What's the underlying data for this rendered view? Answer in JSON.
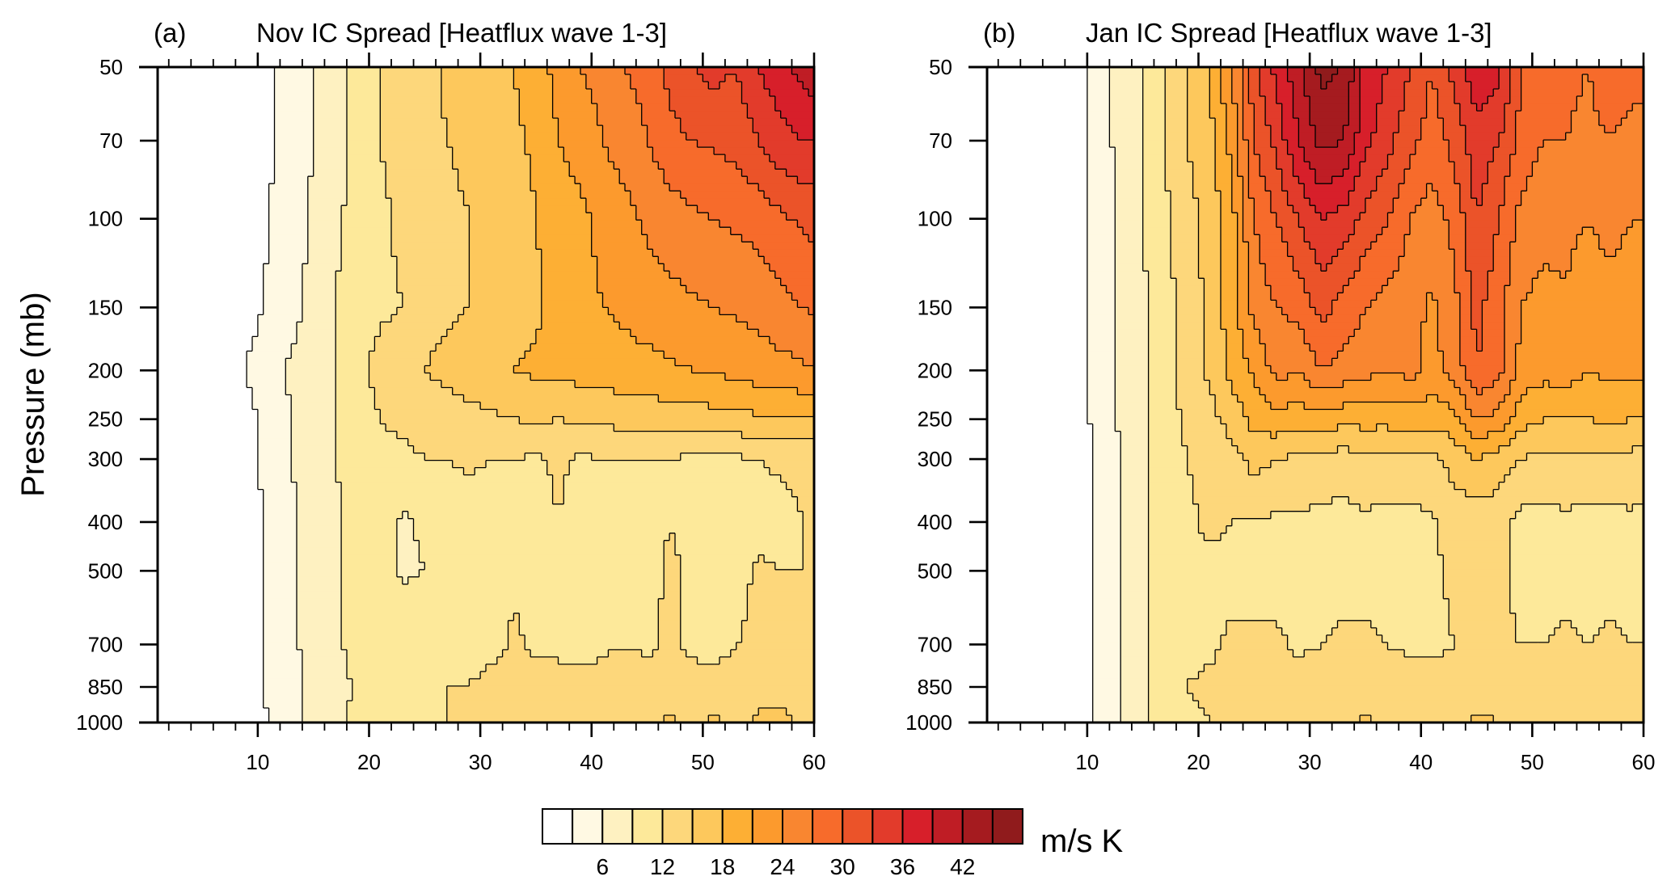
{
  "chart_data": [
    {
      "type": "heatmap",
      "subtype": "filled-contour",
      "panel_label": "(a)",
      "title": "Nov IC Spread [Heatflux wave 1-3]",
      "ylabel": "Pressure (mb)",
      "xlabel": "",
      "xlim": [
        1,
        60
      ],
      "ylim": [
        1000,
        50
      ],
      "yscale": "log",
      "x_ticks": [
        10,
        20,
        30,
        40,
        50,
        60
      ],
      "y_ticks": [
        50,
        70,
        100,
        150,
        200,
        250,
        300,
        400,
        500,
        700,
        850,
        1000
      ],
      "grid": false,
      "x": [
        1,
        3,
        5,
        7,
        9,
        11,
        13,
        15,
        17,
        19,
        21,
        23,
        25,
        27,
        29,
        31,
        33,
        35,
        37,
        39,
        41,
        43,
        45,
        47,
        49,
        51,
        53,
        55,
        57,
        59,
        60
      ],
      "y": [
        50,
        70,
        100,
        150,
        200,
        250,
        300,
        400,
        500,
        700,
        850,
        1000
      ],
      "z": [
        [
          0,
          0,
          0,
          0,
          1,
          2.5,
          4.5,
          6,
          8,
          10,
          12,
          13,
          14,
          15.5,
          16,
          17,
          18,
          19.5,
          22,
          24,
          25,
          27,
          28,
          31,
          33,
          34,
          33,
          36,
          38,
          40,
          41
        ],
        [
          0,
          0,
          0,
          0,
          1,
          2.5,
          4.5,
          6,
          8,
          10,
          12,
          13,
          14,
          15,
          15.5,
          16.5,
          17.5,
          18.5,
          21,
          22.5,
          24,
          25.5,
          27,
          29,
          30,
          30.5,
          31,
          33,
          35,
          36,
          36
        ],
        [
          0,
          0,
          0,
          0,
          1,
          3,
          4.5,
          6.5,
          8.5,
          10,
          11.5,
          12.5,
          13.5,
          14.5,
          15,
          15.5,
          16.5,
          18,
          19.5,
          20,
          22,
          23,
          24.5,
          25.5,
          26.5,
          27,
          27.5,
          28,
          29.5,
          30.5,
          31
        ],
        [
          0,
          0,
          0,
          0,
          1.5,
          3.5,
          5,
          7,
          9,
          11,
          11.5,
          12,
          13.5,
          14.5,
          15,
          15.5,
          16.5,
          17.5,
          19,
          20,
          21,
          21.5,
          22.5,
          23,
          23.5,
          24,
          24.5,
          25,
          26,
          27,
          27.5
        ],
        [
          0,
          0,
          0,
          0,
          3.2,
          5,
          6.5,
          8,
          9,
          11,
          13,
          14,
          15,
          16,
          16.5,
          17,
          18,
          18.5,
          19,
          19,
          19.5,
          20,
          20,
          20.5,
          21,
          21,
          22,
          22.5,
          23,
          23.5,
          24
        ],
        [
          0,
          0,
          0,
          0,
          2,
          4,
          6,
          7.5,
          9,
          10.5,
          12,
          12.5,
          13,
          13.5,
          14,
          14.5,
          15,
          15.5,
          15,
          15.5,
          15.5,
          16,
          16,
          16.5,
          16.5,
          17,
          17,
          17.5,
          17.5,
          18,
          18
        ],
        [
          0,
          0,
          0,
          0,
          2,
          4,
          6,
          7.5,
          9,
          10.5,
          11.5,
          11.5,
          12,
          12,
          12.5,
          12,
          12,
          11.5,
          12.5,
          11.5,
          12,
          12,
          12,
          12,
          11.5,
          11.5,
          11.5,
          12,
          12.5,
          12.5,
          12
        ],
        [
          0,
          0,
          0,
          0,
          1.5,
          3.5,
          5.5,
          7,
          8.5,
          10,
          10.5,
          8.5,
          9.5,
          10,
          10.5,
          10,
          10.5,
          11,
          12,
          11,
          10.5,
          10.5,
          10.5,
          12,
          11,
          10.5,
          10.5,
          11,
          11,
          12,
          12.5
        ],
        [
          0,
          0,
          0,
          0,
          1.5,
          3.5,
          5.5,
          7,
          8.5,
          10,
          10.5,
          8.5,
          9,
          10,
          9.5,
          10,
          11.5,
          11,
          11,
          10,
          10.5,
          11,
          11,
          12.5,
          11.5,
          10.5,
          11,
          12.5,
          12,
          12,
          12.5
        ],
        [
          0,
          0,
          0,
          0,
          1.5,
          3.5,
          5.5,
          7,
          8.5,
          10,
          11,
          11,
          11.5,
          11,
          11,
          11,
          12.5,
          11.5,
          12,
          11,
          11.5,
          12,
          11.5,
          12.5,
          11.5,
          11,
          12,
          12.5,
          12,
          12.5,
          13
        ],
        [
          0,
          0,
          0,
          0,
          2,
          3.5,
          5,
          7,
          8,
          9.5,
          11,
          11,
          11.5,
          12,
          12,
          13,
          13,
          13,
          12,
          13,
          13,
          13.5,
          13,
          13.5,
          13,
          13,
          13.5,
          14,
          14,
          13.5,
          13
        ],
        [
          0,
          0,
          0,
          0,
          1.5,
          3,
          5,
          7,
          8.5,
          9.5,
          10,
          10.5,
          11,
          12,
          12.5,
          13.5,
          13,
          13.5,
          13.5,
          14,
          14,
          13.5,
          14,
          15.5,
          14,
          15.5,
          14.5,
          15.5,
          16,
          14,
          14
        ]
      ]
    },
    {
      "type": "heatmap",
      "subtype": "filled-contour",
      "panel_label": "(b)",
      "title": "Jan IC Spread [Heatflux wave 1-3]",
      "ylabel": "",
      "xlabel": "",
      "xlim": [
        1,
        60
      ],
      "ylim": [
        1000,
        50
      ],
      "yscale": "log",
      "x_ticks": [
        10,
        20,
        30,
        40,
        50,
        60
      ],
      "y_ticks": [
        50,
        70,
        100,
        150,
        200,
        250,
        300,
        400,
        500,
        700,
        850,
        1000
      ],
      "grid": false,
      "x": [
        1,
        3,
        5,
        7,
        9,
        11,
        13,
        15,
        17,
        19,
        21,
        23,
        25,
        27,
        29,
        31,
        33,
        35,
        37,
        39,
        41,
        43,
        45,
        47,
        49,
        51,
        53,
        55,
        57,
        59,
        60
      ],
      "y": [
        50,
        70,
        100,
        150,
        200,
        250,
        300,
        400,
        500,
        700,
        850,
        1000
      ],
      "z": [
        [
          0,
          0,
          0,
          0,
          1.5,
          4.5,
          7,
          9,
          12,
          15,
          18,
          24,
          32,
          37,
          41,
          46,
          45,
          38,
          36,
          33,
          30,
          34,
          38,
          37,
          30,
          29,
          28,
          27,
          29,
          28,
          28
        ],
        [
          0,
          0,
          0,
          0,
          1.5,
          4.5,
          7,
          9,
          12,
          15,
          17,
          22,
          30,
          34,
          39,
          43,
          42,
          37,
          34,
          31,
          28.5,
          31,
          35,
          33,
          29,
          27,
          27,
          26,
          27,
          26,
          26
        ],
        [
          0,
          0,
          0,
          0,
          1.5,
          4,
          6.5,
          9,
          11.5,
          14,
          16,
          20,
          27,
          30,
          33,
          36,
          35,
          32,
          30,
          27,
          25.5,
          28,
          33,
          30,
          26,
          25,
          25,
          24,
          25,
          24,
          24
        ],
        [
          0,
          0,
          0,
          0,
          1.5,
          4,
          6.5,
          8.5,
          11,
          13,
          16,
          19.5,
          25,
          27,
          28,
          31,
          29,
          27,
          26,
          25,
          23.5,
          26,
          31,
          28,
          24,
          23,
          23.5,
          22,
          23,
          22,
          22
        ],
        [
          0,
          0,
          0,
          0,
          1.5,
          4,
          6.5,
          8.5,
          11,
          13,
          15.5,
          19,
          21.5,
          25,
          24,
          27,
          26,
          25,
          24,
          25,
          23,
          25,
          30,
          28,
          23,
          22,
          22.5,
          21,
          22,
          21.5,
          21.5
        ],
        [
          0,
          0,
          0,
          0,
          1.5,
          4,
          6.5,
          8.5,
          11,
          12.5,
          14,
          16,
          19,
          20,
          19.5,
          20,
          19,
          19,
          19,
          19.5,
          19,
          20,
          24,
          23,
          19,
          18,
          18,
          18,
          18.5,
          18,
          18
        ],
        [
          0,
          0,
          0,
          0,
          1.5,
          3.5,
          6,
          8.5,
          10.5,
          12,
          13,
          14,
          16,
          15,
          14.5,
          14.5,
          13.5,
          14.5,
          14,
          14.5,
          14.5,
          16,
          18,
          16.5,
          15,
          14,
          14.5,
          14,
          14.5,
          14,
          14
        ],
        [
          0,
          0,
          0,
          0,
          1.5,
          3.5,
          6,
          8.5,
          10,
          11.5,
          12.5,
          12,
          12,
          11.5,
          11.5,
          11,
          11,
          11.5,
          11,
          11,
          11.5,
          13.5,
          13,
          13.5,
          11,
          11,
          11.5,
          11,
          11,
          11.5,
          11
        ],
        [
          0,
          0,
          0,
          0,
          1.5,
          3.5,
          6,
          8.5,
          10,
          11.5,
          11.5,
          11,
          12,
          11,
          11,
          11,
          11,
          11,
          11,
          11,
          11.5,
          12.5,
          12,
          13,
          11,
          11,
          11,
          11,
          11,
          11,
          11
        ],
        [
          0,
          0,
          0,
          0,
          1.5,
          3.5,
          6,
          8.5,
          10.5,
          11.5,
          11.5,
          12.5,
          12,
          12.5,
          11.5,
          12,
          12.5,
          12.5,
          12,
          11.5,
          11.5,
          12,
          12.5,
          12.5,
          12,
          12,
          12.5,
          12,
          12.5,
          12,
          12
        ],
        [
          0,
          0,
          0,
          0,
          1.5,
          3.5,
          6,
          8.5,
          10.5,
          12,
          12.5,
          13,
          12.5,
          12.5,
          13.5,
          13,
          13.5,
          14,
          13.5,
          13,
          13,
          13,
          13.5,
          13.5,
          13,
          13,
          13,
          13.5,
          13,
          12.5,
          12
        ],
        [
          0,
          0,
          0,
          0,
          1.5,
          3.5,
          6,
          8.5,
          10.5,
          11.5,
          12,
          13,
          13,
          13.5,
          14,
          13,
          13.5,
          15.5,
          14,
          13,
          13,
          13.5,
          15.5,
          15,
          14,
          15,
          15,
          14,
          14.5,
          14,
          13
        ]
      ]
    }
  ],
  "colorbar": {
    "levels": [
      3,
      6,
      9,
      12,
      15,
      18,
      21,
      24,
      27,
      30,
      33,
      36,
      39,
      42,
      45
    ],
    "labels": [
      "6",
      "12",
      "18",
      "24",
      "30",
      "36",
      "42"
    ],
    "units": "m/s K",
    "colors": [
      "#FFFFFF",
      "#FFF9E3",
      "#FEF1C1",
      "#FDE99A",
      "#FDD77B",
      "#FDC85C",
      "#FDAF34",
      "#FC9A2D",
      "#F98630",
      "#F76B2B",
      "#EB5329",
      "#E23B2B",
      "#D71F2A",
      "#BF1D25",
      "#A51B1F",
      "#901B1C"
    ]
  }
}
